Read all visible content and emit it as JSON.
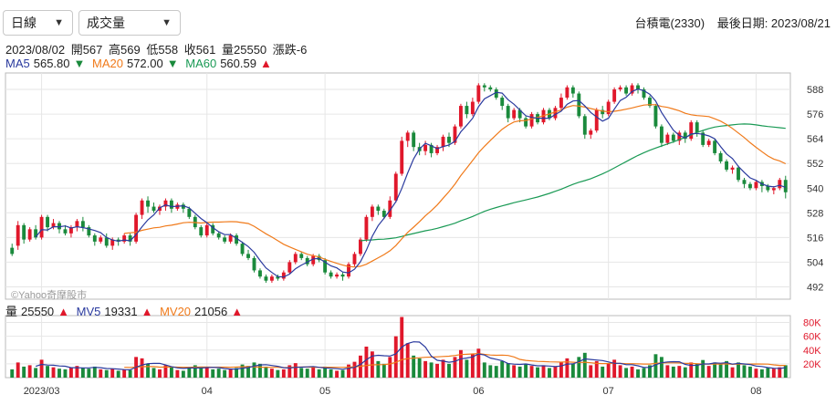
{
  "controls": {
    "period": "日線",
    "indicator": "成交量"
  },
  "header": {
    "stock": "台積電(2330)",
    "last_date_label": "最後日期: 2023/08/21"
  },
  "ohlc": {
    "date": "2023/08/02",
    "open": "開567",
    "high": "高569",
    "low": "低558",
    "close": "收561",
    "volume": "量25550",
    "change": "漲跌-6"
  },
  "ma": {
    "ma5_label": "MA5",
    "ma5_value": "565.80",
    "ma5_arrow": "▼",
    "ma20_label": "MA20",
    "ma20_value": "572.00",
    "ma20_arrow": "▼",
    "ma60_label": "MA60",
    "ma60_value": "560.59",
    "ma60_arrow": "▲"
  },
  "vol": {
    "label": "量",
    "value": "25550",
    "arrow": "▲",
    "mv5_label": "MV5",
    "mv5_value": "19331",
    "mv5_arrow": "▲",
    "mv20_label": "MV20",
    "mv20_value": "21056",
    "mv20_arrow": "▲"
  },
  "watermark": "©Yahoo奇摩股市",
  "colors": {
    "up": "#e0182b",
    "down": "#1a8a3c",
    "ma5": "#2a3a9e",
    "ma20": "#f07a1a",
    "ma60": "#1a9a55",
    "grid": "#e6e6e6"
  },
  "chart_data": {
    "type": "candlestick",
    "price_axis": {
      "ticks": [
        492,
        504,
        516,
        528,
        540,
        552,
        564,
        576,
        588
      ],
      "range": [
        486,
        596
      ]
    },
    "volume_axis": {
      "ticks": [
        "20K",
        "40K",
        "60K",
        "80K"
      ],
      "tick_values": [
        20000,
        40000,
        60000,
        80000
      ],
      "range": [
        0,
        90000
      ]
    },
    "x_labels": [
      {
        "label": "2023/03",
        "index": 5
      },
      {
        "label": "04",
        "index": 33
      },
      {
        "label": "05",
        "index": 53
      },
      {
        "label": "06",
        "index": 79
      },
      {
        "label": "07",
        "index": 101
      },
      {
        "label": "08",
        "index": 126
      }
    ],
    "candles": [
      [
        511,
        508,
        513,
        507,
        12000
      ],
      [
        512,
        522,
        524,
        510,
        22000
      ],
      [
        522,
        515,
        523,
        513,
        16000
      ],
      [
        515,
        520,
        521,
        514,
        18000
      ],
      [
        520,
        516,
        522,
        515,
        14000
      ],
      [
        516,
        526,
        527,
        515,
        26000
      ],
      [
        526,
        521,
        527,
        519,
        17000
      ],
      [
        521,
        523,
        525,
        520,
        15000
      ],
      [
        523,
        520,
        524,
        518,
        13000
      ],
      [
        520,
        518,
        522,
        517,
        12000
      ],
      [
        518,
        521,
        522,
        516,
        15000
      ],
      [
        521,
        524,
        525,
        519,
        17000
      ],
      [
        524,
        521,
        526,
        519,
        14000
      ],
      [
        521,
        517,
        522,
        516,
        13000
      ],
      [
        517,
        514,
        518,
        512,
        16000
      ],
      [
        514,
        516,
        517,
        513,
        12000
      ],
      [
        516,
        512,
        518,
        511,
        11000
      ],
      [
        512,
        515,
        516,
        510,
        13000
      ],
      [
        515,
        514,
        516,
        512,
        10000
      ],
      [
        514,
        517,
        518,
        513,
        12000
      ],
      [
        517,
        514,
        518,
        512,
        11000
      ],
      [
        514,
        527,
        528,
        513,
        30000
      ],
      [
        527,
        534,
        535,
        525,
        28000
      ],
      [
        534,
        531,
        536,
        528,
        20000
      ],
      [
        531,
        529,
        533,
        528,
        14000
      ],
      [
        529,
        531,
        532,
        527,
        12000
      ],
      [
        531,
        534,
        535,
        529,
        18000
      ],
      [
        534,
        530,
        535,
        528,
        16000
      ],
      [
        530,
        532,
        533,
        529,
        11000
      ],
      [
        532,
        530,
        533,
        528,
        10000
      ],
      [
        530,
        526,
        531,
        525,
        15000
      ],
      [
        526,
        521,
        527,
        520,
        18000
      ],
      [
        521,
        517,
        522,
        516,
        16000
      ],
      [
        517,
        522,
        523,
        516,
        14000
      ],
      [
        522,
        518,
        523,
        517,
        12000
      ],
      [
        518,
        516,
        519,
        515,
        13000
      ],
      [
        516,
        514,
        517,
        513,
        11000
      ],
      [
        514,
        517,
        518,
        513,
        12000
      ],
      [
        517,
        513,
        518,
        512,
        14000
      ],
      [
        513,
        508,
        514,
        507,
        19000
      ],
      [
        508,
        506,
        510,
        505,
        17000
      ],
      [
        506,
        500,
        507,
        499,
        22000
      ],
      [
        500,
        497,
        501,
        496,
        20000
      ],
      [
        497,
        495,
        498,
        494,
        16000
      ],
      [
        495,
        497,
        498,
        494,
        13000
      ],
      [
        497,
        496,
        498,
        495,
        11000
      ],
      [
        496,
        499,
        500,
        495,
        12000
      ],
      [
        499,
        504,
        505,
        498,
        18000
      ],
      [
        504,
        508,
        509,
        503,
        21000
      ],
      [
        508,
        506,
        509,
        505,
        14000
      ],
      [
        506,
        503,
        507,
        502,
        13000
      ],
      [
        503,
        507,
        508,
        502,
        15000
      ],
      [
        507,
        505,
        508,
        504,
        12000
      ],
      [
        505,
        499,
        506,
        498,
        16000
      ],
      [
        499,
        497,
        500,
        496,
        12000
      ],
      [
        497,
        498,
        499,
        496,
        10000
      ],
      [
        498,
        497,
        499,
        495,
        11000
      ],
      [
        497,
        503,
        504,
        496,
        19000
      ],
      [
        503,
        508,
        509,
        502,
        23000
      ],
      [
        508,
        515,
        516,
        507,
        32000
      ],
      [
        515,
        526,
        527,
        514,
        45000
      ],
      [
        526,
        531,
        532,
        524,
        38000
      ],
      [
        531,
        529,
        532,
        527,
        24000
      ],
      [
        529,
        526,
        530,
        525,
        20000
      ],
      [
        526,
        534,
        536,
        525,
        30000
      ],
      [
        534,
        547,
        548,
        533,
        60000
      ],
      [
        547,
        563,
        565,
        546,
        88000
      ],
      [
        563,
        567,
        568,
        560,
        50000
      ],
      [
        567,
        560,
        568,
        558,
        32000
      ],
      [
        560,
        558,
        562,
        556,
        28000
      ],
      [
        558,
        561,
        563,
        556,
        24000
      ],
      [
        561,
        557,
        562,
        555,
        22000
      ],
      [
        557,
        560,
        561,
        556,
        20000
      ],
      [
        560,
        565,
        566,
        558,
        26000
      ],
      [
        565,
        562,
        567,
        560,
        20000
      ],
      [
        562,
        570,
        571,
        561,
        30000
      ],
      [
        570,
        580,
        581,
        569,
        40000
      ],
      [
        580,
        576,
        582,
        574,
        26000
      ],
      [
        576,
        582,
        584,
        575,
        34000
      ],
      [
        582,
        590,
        591,
        581,
        42000
      ],
      [
        590,
        589,
        591,
        587,
        22000
      ],
      [
        589,
        588,
        590,
        587,
        18000
      ],
      [
        588,
        584,
        589,
        583,
        17000
      ],
      [
        584,
        580,
        585,
        578,
        24000
      ],
      [
        580,
        574,
        581,
        572,
        21000
      ],
      [
        574,
        578,
        579,
        573,
        18000
      ],
      [
        578,
        574,
        579,
        572,
        16000
      ],
      [
        574,
        570,
        575,
        569,
        20000
      ],
      [
        570,
        576,
        577,
        569,
        17000
      ],
      [
        576,
        572,
        577,
        571,
        15000
      ],
      [
        572,
        578,
        579,
        571,
        18000
      ],
      [
        578,
        574,
        579,
        573,
        14000
      ],
      [
        574,
        579,
        580,
        573,
        16000
      ],
      [
        579,
        584,
        586,
        578,
        22000
      ],
      [
        584,
        589,
        590,
        583,
        28000
      ],
      [
        589,
        586,
        590,
        584,
        20000
      ],
      [
        586,
        575,
        587,
        574,
        30000
      ],
      [
        575,
        566,
        576,
        564,
        36000
      ],
      [
        566,
        568,
        569,
        564,
        18000
      ],
      [
        568,
        578,
        579,
        567,
        24000
      ],
      [
        578,
        576,
        580,
        574,
        16000
      ],
      [
        576,
        582,
        583,
        575,
        20000
      ],
      [
        582,
        588,
        589,
        581,
        26000
      ],
      [
        588,
        589,
        590,
        587,
        18000
      ],
      [
        589,
        586,
        590,
        585,
        14000
      ],
      [
        586,
        590,
        591,
        585,
        16000
      ],
      [
        590,
        588,
        591,
        586,
        12000
      ],
      [
        588,
        584,
        589,
        583,
        14000
      ],
      [
        584,
        580,
        585,
        579,
        18000
      ],
      [
        580,
        570,
        581,
        569,
        34000
      ],
      [
        570,
        562,
        571,
        560,
        30000
      ],
      [
        562,
        566,
        567,
        561,
        18000
      ],
      [
        566,
        563,
        567,
        562,
        16000
      ],
      [
        563,
        567,
        568,
        561,
        17000
      ],
      [
        567,
        564,
        568,
        562,
        15000
      ],
      [
        564,
        572,
        573,
        563,
        22000
      ],
      [
        572,
        567,
        573,
        565,
        20000
      ],
      [
        567,
        561,
        568,
        560,
        25550
      ],
      [
        561,
        563,
        564,
        560,
        17000
      ],
      [
        563,
        557,
        564,
        556,
        22000
      ],
      [
        557,
        553,
        558,
        552,
        20000
      ],
      [
        553,
        549,
        554,
        548,
        24000
      ],
      [
        549,
        550,
        551,
        547,
        15000
      ],
      [
        550,
        544,
        551,
        543,
        22000
      ],
      [
        544,
        542,
        545,
        540,
        18000
      ],
      [
        542,
        540,
        543,
        539,
        16000
      ],
      [
        540,
        543,
        544,
        539,
        13000
      ],
      [
        543,
        541,
        544,
        538,
        12000
      ],
      [
        541,
        539,
        542,
        538,
        14000
      ],
      [
        539,
        540,
        541,
        537,
        13000
      ],
      [
        540,
        544,
        545,
        539,
        15000
      ],
      [
        544,
        538,
        546,
        535,
        18000
      ]
    ],
    "series": [
      {
        "name": "MA5"
      },
      {
        "name": "MA20"
      },
      {
        "name": "MA60"
      },
      {
        "name": "MV5"
      },
      {
        "name": "MV20"
      }
    ]
  }
}
